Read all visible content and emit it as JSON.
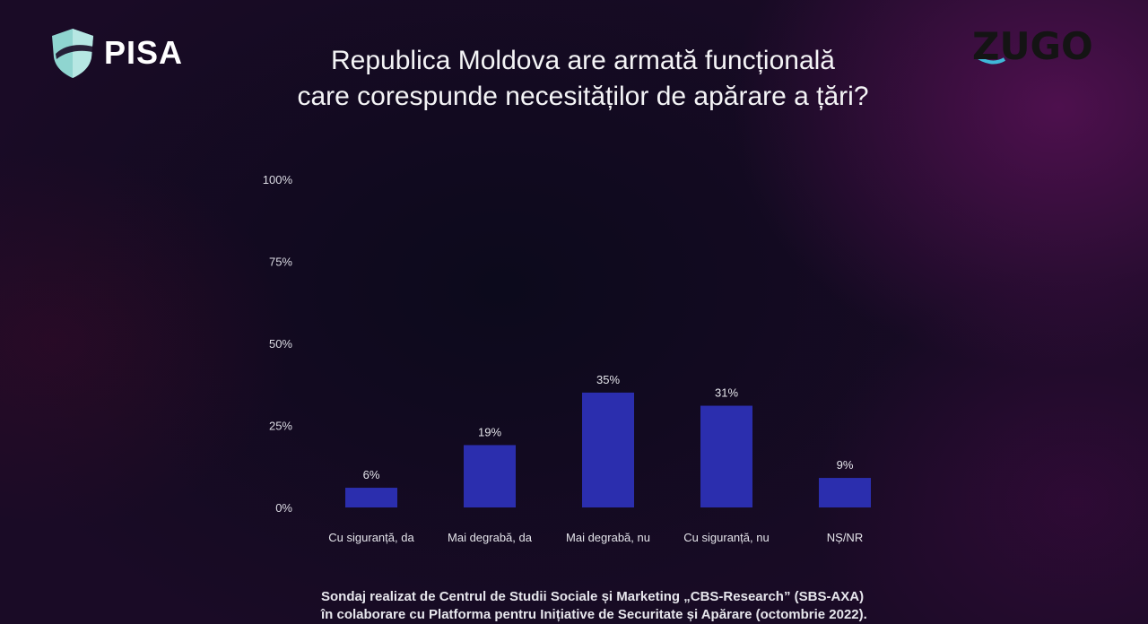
{
  "brand_left": {
    "name": "PISA",
    "icon": "shield-icon",
    "color": "#8fd5d0"
  },
  "brand_right": {
    "name": "ZUGO",
    "accent": "#3fb8d8"
  },
  "title_lines": [
    "Republica Moldova are armată funcțională",
    "care corespunde necesităților de apărare a țări?"
  ],
  "chart_data": {
    "type": "bar",
    "categories": [
      "Cu siguranță, da",
      "Mai degrabă, da",
      "Mai degrabă, nu",
      "Cu siguranță, nu",
      "NȘ/NR"
    ],
    "values": [
      6,
      19,
      35,
      31,
      9
    ],
    "value_labels": [
      "6%",
      "19%",
      "35%",
      "31%",
      "9%"
    ],
    "yticks": [
      0,
      25,
      50,
      75,
      100
    ],
    "ytick_labels": [
      "0%",
      "25%",
      "50%",
      "75%",
      "100%"
    ],
    "ylim": [
      0,
      100
    ],
    "grid": false,
    "bar_color": "#2b2eae"
  },
  "footer_lines": [
    "Sondaj realizat de Centrul de Studii Sociale și Marketing „CBS-Research” (SBS-AXA)",
    "în colaborare cu Platforma pentru Inițiative de Securitate și Apărare (octombrie 2022)."
  ]
}
